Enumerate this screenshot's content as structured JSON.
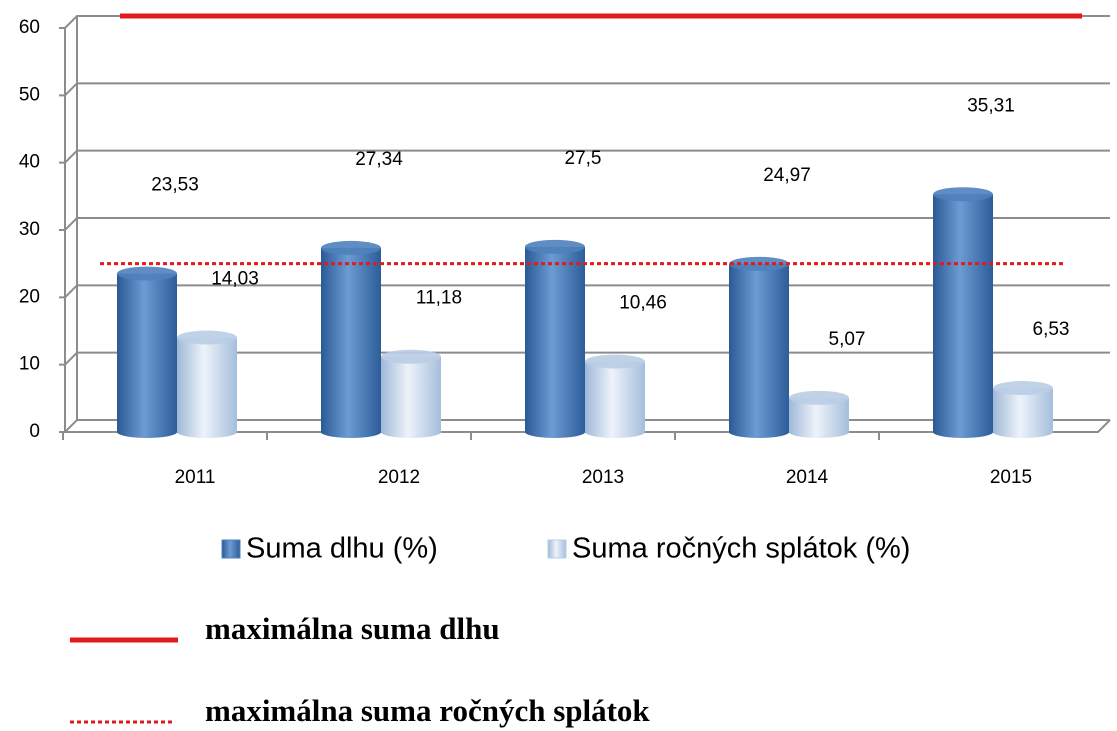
{
  "chart_data": {
    "type": "bar",
    "categories": [
      "2011",
      "2012",
      "2013",
      "2014",
      "2015"
    ],
    "series": [
      {
        "name": "Suma dlhu (%)",
        "color": "#4f81bd",
        "values": [
          23.53,
          27.34,
          27.5,
          24.97,
          35.31
        ],
        "value_labels": [
          "23,53",
          "27,34",
          "27,5",
          "24,97",
          "35,31"
        ]
      },
      {
        "name": "Suma ročných splátok (%)",
        "color": "#b9cde5",
        "values": [
          14.03,
          11.18,
          10.46,
          5.07,
          6.53
        ],
        "value_labels": [
          "14,03",
          "11,18",
          "10,46",
          "5,07",
          "6,53"
        ]
      }
    ],
    "reference_lines": [
      {
        "name": "maximálna suma dlhu",
        "value": 60,
        "color": "#e31a1c",
        "style": "solid"
      },
      {
        "name": "maximálna suma ročných splátok",
        "value": 25,
        "color": "#e31a1c",
        "style": "dotted"
      }
    ],
    "ylim": [
      0,
      60
    ],
    "yticks": [
      0,
      10,
      20,
      30,
      40,
      50,
      60
    ],
    "grid": true
  }
}
